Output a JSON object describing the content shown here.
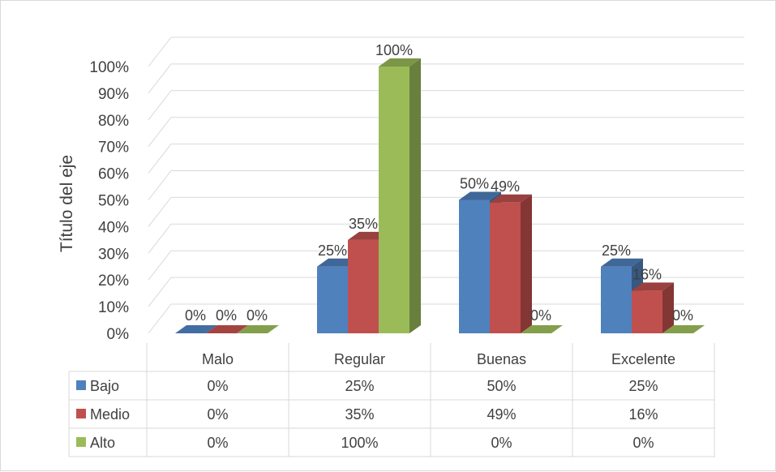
{
  "chart_data": {
    "type": "bar",
    "title": "",
    "xlabel": "",
    "ylabel": "Título del eje",
    "ylim": [
      0,
      100
    ],
    "yticks": [
      "0%",
      "10%",
      "20%",
      "30%",
      "40%",
      "50%",
      "60%",
      "70%",
      "80%",
      "90%",
      "100%"
    ],
    "grid": true,
    "style": "3d-clustered-column",
    "categories": [
      "Malo",
      "Regular",
      "Buenas",
      "Excelente"
    ],
    "series": [
      {
        "name": "Bajo",
        "color": "#4F81BD",
        "values": [
          0,
          25,
          50,
          25
        ],
        "labels": [
          "0%",
          "25%",
          "50%",
          "25%"
        ]
      },
      {
        "name": "Medio",
        "color": "#C0504D",
        "values": [
          0,
          35,
          49,
          16
        ],
        "labels": [
          "0%",
          "35%",
          "49%",
          "16%"
        ]
      },
      {
        "name": "Alto",
        "color": "#9BBB59",
        "values": [
          0,
          100,
          0,
          0
        ],
        "labels": [
          "0%",
          "100%",
          "0%",
          "0%"
        ]
      }
    ],
    "legend": "data-table-below"
  }
}
